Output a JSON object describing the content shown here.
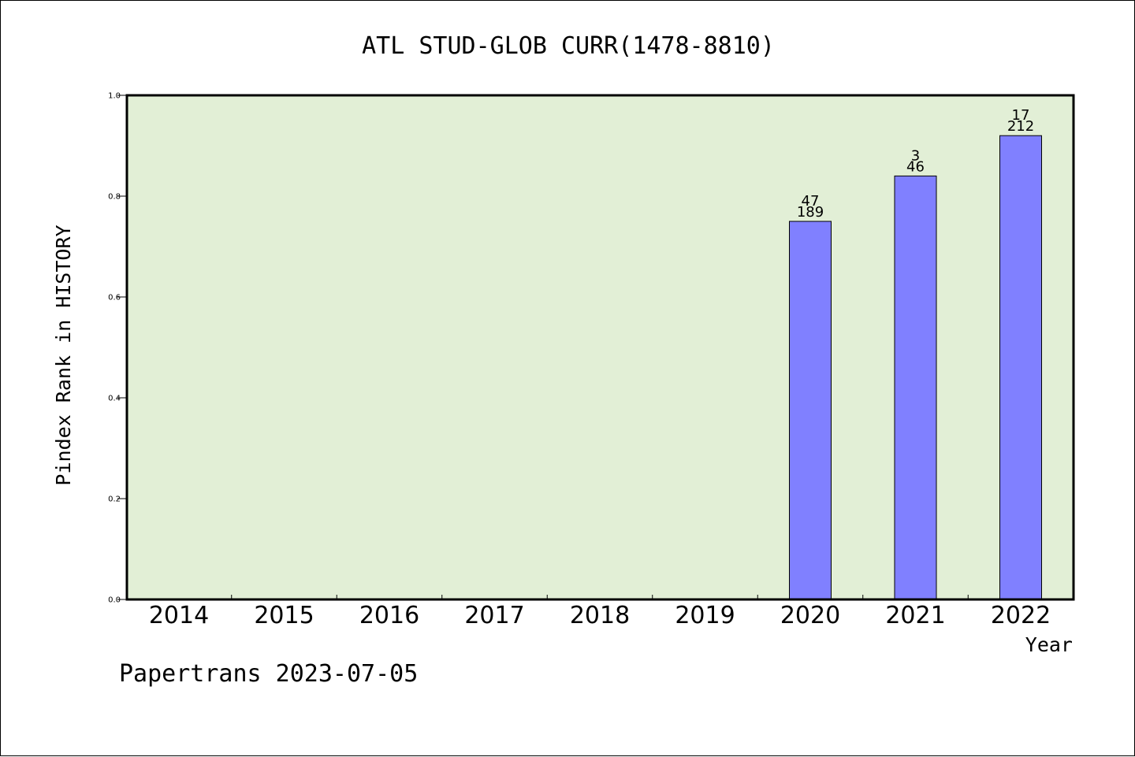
{
  "colors": {
    "plot_background": "#e2efd6",
    "bar_fill": "#8080ff",
    "frame": "#000000"
  },
  "footer": "Papertrans 2023-07-05",
  "chart_data": {
    "type": "bar",
    "title": "ATL STUD-GLOB CURR(1478-8810)",
    "xlabel": "Year",
    "ylabel": "Pindex Rank in HISTORY",
    "ylim": [
      0,
      1.0
    ],
    "yticks": [
      "0.0",
      "0.2",
      "0.4",
      "0.6",
      "0.8",
      "1.0"
    ],
    "grid": false,
    "categories": [
      "2014",
      "2015",
      "2016",
      "2017",
      "2018",
      "2019",
      "2020",
      "2021",
      "2022"
    ],
    "values": [
      null,
      null,
      null,
      null,
      null,
      null,
      0.75,
      0.84,
      0.92
    ],
    "bar_labels_top": [
      null,
      null,
      null,
      null,
      null,
      null,
      "47",
      "3",
      "17"
    ],
    "bar_labels_bottom": [
      null,
      null,
      null,
      null,
      null,
      null,
      "189",
      "46",
      "212"
    ]
  }
}
